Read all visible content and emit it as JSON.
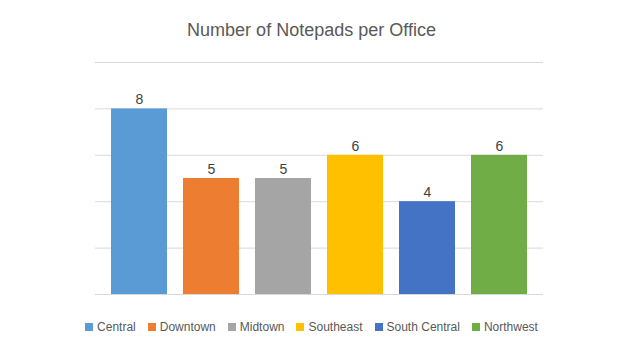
{
  "chart_data": {
    "type": "bar",
    "title": "Number of Notepads per Office",
    "categories": [
      "Central",
      "Downtown",
      "Midtown",
      "Southeast",
      "South Central",
      "Northwest"
    ],
    "values": [
      8,
      5,
      5,
      6,
      4,
      6
    ],
    "colors": [
      "#5b9bd5",
      "#ed7d31",
      "#a5a5a5",
      "#ffc000",
      "#4472c4",
      "#70ad47"
    ],
    "ylim": [
      0,
      10
    ],
    "yticks": [
      0,
      2,
      4,
      6,
      8,
      10
    ],
    "grid": true,
    "data_labels": true,
    "legend": "bottom",
    "tick_labels": false
  }
}
